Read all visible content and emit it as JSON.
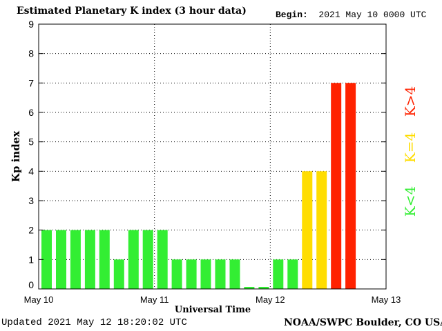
{
  "header": {
    "title": "Estimated Planetary K index (3 hour data)",
    "begin_label": "Begin:",
    "begin_value": "2021 May 10 0000 UTC"
  },
  "footer": {
    "updated": "Updated 2021 May 12 18:20:02 UTC",
    "credit": "NOAA/SWPC Boulder, CO USA"
  },
  "chart_data": {
    "type": "bar",
    "title": "Estimated Planetary K index (3 hour data)",
    "xlabel": "Universal Time",
    "ylabel": "Kp index",
    "ylim": [
      0,
      9
    ],
    "y_ticks": [
      0,
      1,
      2,
      3,
      4,
      5,
      6,
      7,
      8,
      9
    ],
    "x_tick_labels": [
      "May 10",
      "May 11",
      "May 12",
      "May 13"
    ],
    "grid": true,
    "bins_per_day": 8,
    "values": [
      2,
      2,
      2,
      2,
      2,
      1,
      2,
      2,
      2,
      1,
      1,
      1,
      1,
      1,
      0,
      0,
      1,
      1,
      4,
      4,
      7,
      7
    ],
    "legend": [
      {
        "label": "K<4",
        "color": "#33ee33"
      },
      {
        "label": "K=4",
        "color": "#ffdd00"
      },
      {
        "label": "K>4",
        "color": "#ff2200"
      }
    ],
    "colors": {
      "low": "#33ee33",
      "mid": "#ffdd00",
      "high": "#ff2200"
    }
  }
}
